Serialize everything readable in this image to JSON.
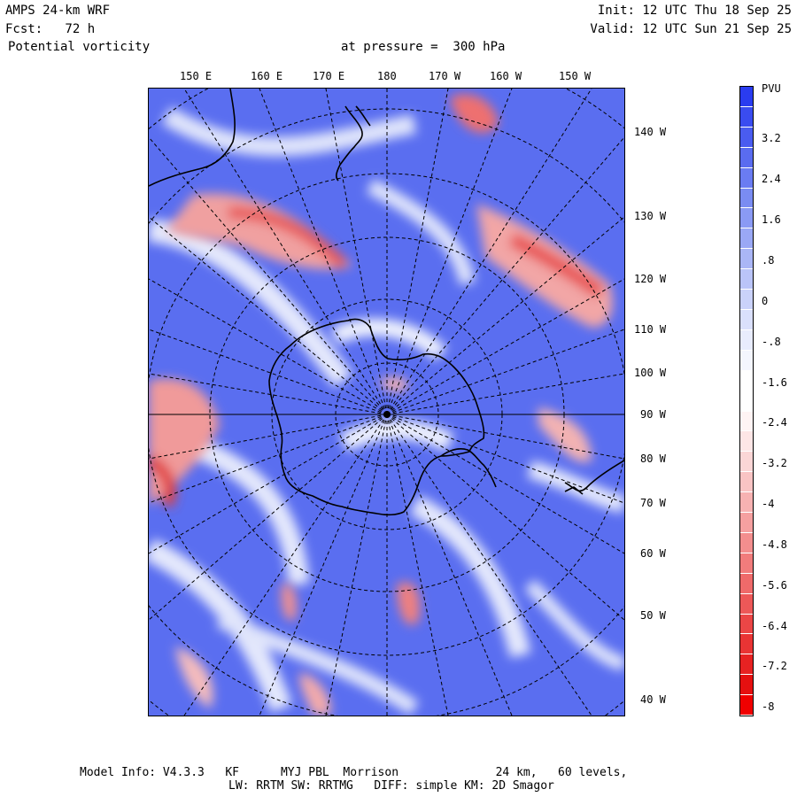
{
  "header": {
    "model": "AMPS 24-km WRF",
    "forecast": "Fcst:   72 h",
    "field": "Potential vorticity",
    "pressure": "at pressure =  300 hPa",
    "init": "Init: 12 UTC Thu 18 Sep 25",
    "valid": "Valid: 12 UTC Sun 21 Sep 25"
  },
  "map": {
    "top_labels": [
      "150 E",
      "160 E",
      "170 E",
      "180",
      "170 W",
      "160 W",
      "150 W"
    ],
    "right_labels": [
      "140 W",
      "130 W",
      "120 W",
      "110 W",
      "100 W",
      "90 W",
      "80 W",
      "70 W",
      "60 W",
      "50 W",
      "40 W"
    ]
  },
  "colorbar": {
    "unit": "PVU",
    "labels": [
      "3.2",
      "2.4",
      "1.6",
      ".8",
      "0",
      "-.8",
      "-1.6",
      "-2.4",
      "-3.2",
      "-4",
      "-4.8",
      "-5.6",
      "-6.4",
      "-7.2",
      "-8"
    ],
    "colors": [
      "#2a3cf0",
      "#3a4cf0",
      "#4a5cf0",
      "#5a6cf0",
      "#6a7cf2",
      "#7a8cf2",
      "#8a9af4",
      "#9aa8f5",
      "#aab6f6",
      "#bac4f8",
      "#cad2fa",
      "#dae0fc",
      "#e8ecfd",
      "#f4f6fe",
      "#ffffff",
      "#ffffff",
      "#fff4f4",
      "#fde6e6",
      "#fbd6d6",
      "#f9c4c4",
      "#f7b2b2",
      "#f5a0a0",
      "#f38e8e",
      "#f17c7c",
      "#ef6a6a",
      "#ed5858",
      "#eb4646",
      "#e93434",
      "#e72222",
      "#e51010",
      "#f00000"
    ]
  },
  "footer": {
    "line1": "Model Info: V4.3.3   KF      MYJ PBL  Morrison              24 km,   60 levels,",
    "line2": "LW: RRTM SW: RRTMG   DIFF: simple KM: 2D Smagor"
  }
}
